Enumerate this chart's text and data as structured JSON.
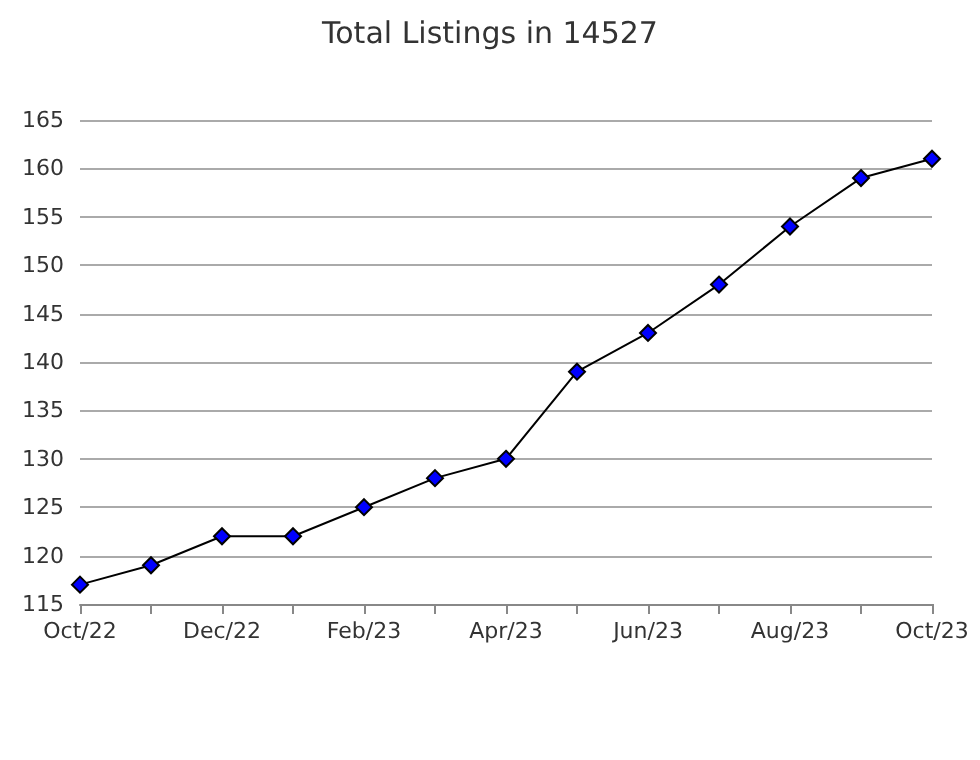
{
  "chart_data": {
    "type": "line",
    "title": "Total Listings in 14527",
    "categories": [
      "Oct/22",
      null,
      "Dec/22",
      null,
      "Feb/23",
      null,
      "Apr/23",
      null,
      "Jun/23",
      null,
      "Aug/23",
      null,
      "Oct/23"
    ],
    "series": [
      {
        "color": "#0000ff",
        "values": [
          117,
          119,
          122,
          122,
          125,
          128,
          130,
          139,
          143,
          148,
          154,
          159,
          161
        ]
      }
    ],
    "ylim": [
      115,
      165
    ],
    "yticks": [
      115,
      120,
      125,
      130,
      135,
      140,
      145,
      150,
      155,
      160,
      165
    ],
    "grid": "y",
    "marker": "diamond",
    "line_style": "solid"
  }
}
